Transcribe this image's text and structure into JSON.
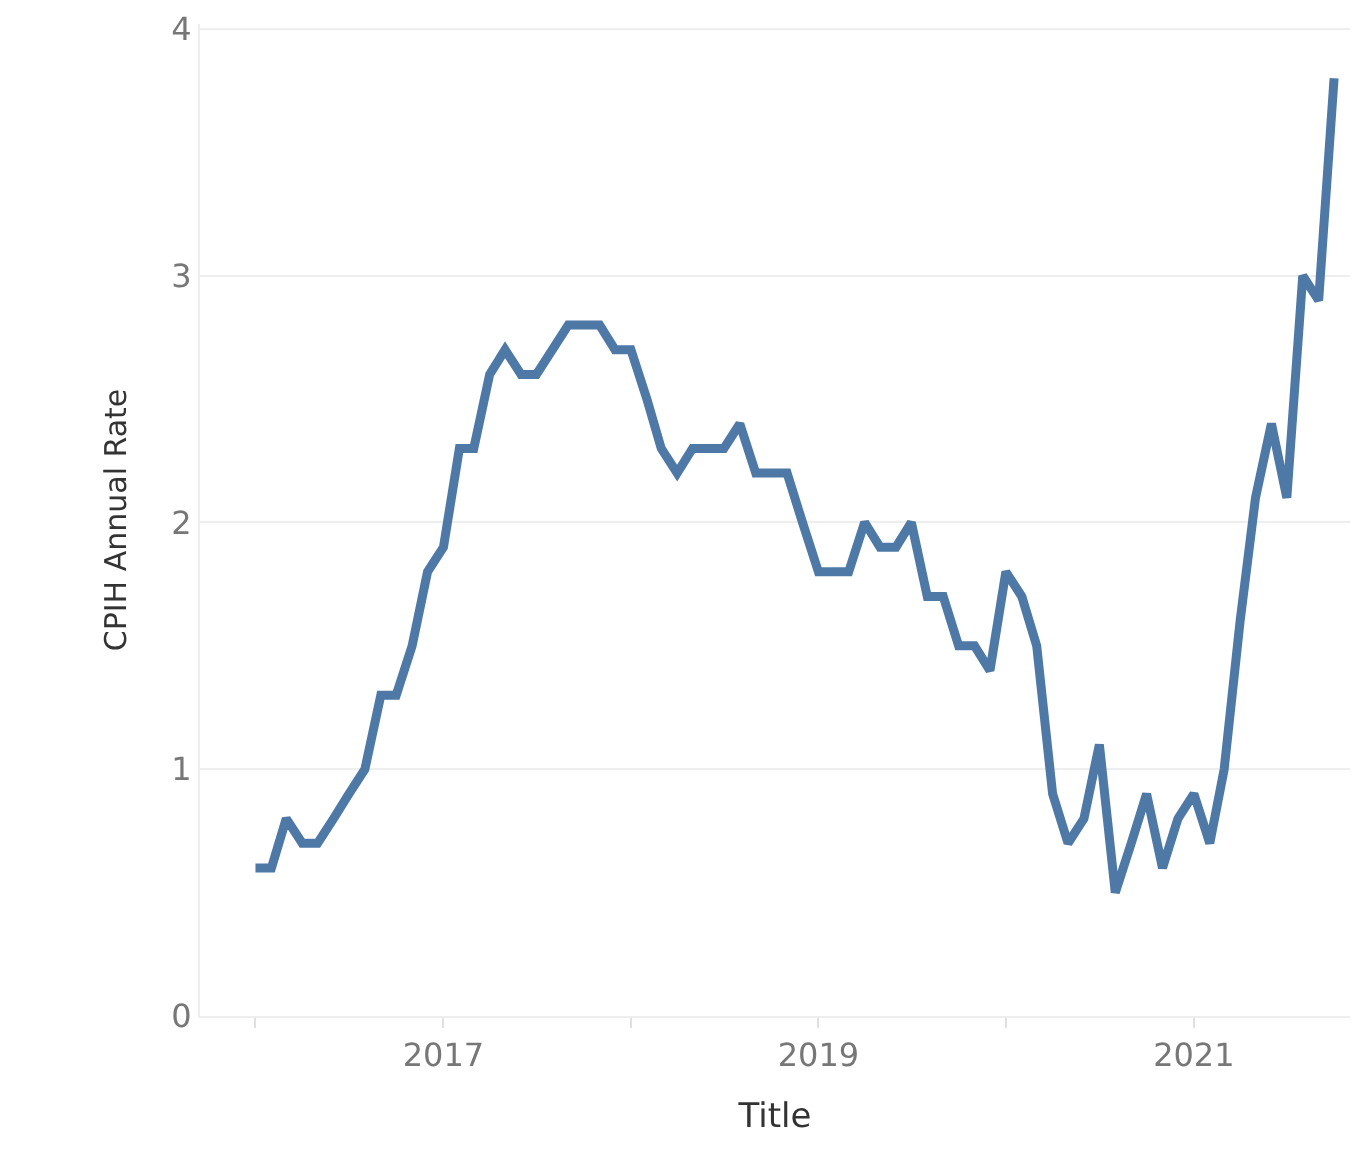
{
  "chart_data": {
    "type": "line",
    "xlabel": "Title",
    "ylabel": "CPIH Annual Rate",
    "x": [
      "2016-01",
      "2016-02",
      "2016-03",
      "2016-04",
      "2016-05",
      "2016-06",
      "2016-07",
      "2016-08",
      "2016-09",
      "2016-10",
      "2016-11",
      "2016-12",
      "2017-01",
      "2017-02",
      "2017-03",
      "2017-04",
      "2017-05",
      "2017-06",
      "2017-07",
      "2017-08",
      "2017-09",
      "2017-10",
      "2017-11",
      "2017-12",
      "2018-01",
      "2018-02",
      "2018-03",
      "2018-04",
      "2018-05",
      "2018-06",
      "2018-07",
      "2018-08",
      "2018-09",
      "2018-10",
      "2018-11",
      "2018-12",
      "2019-01",
      "2019-02",
      "2019-03",
      "2019-04",
      "2019-05",
      "2019-06",
      "2019-07",
      "2019-08",
      "2019-09",
      "2019-10",
      "2019-11",
      "2019-12",
      "2020-01",
      "2020-02",
      "2020-03",
      "2020-04",
      "2020-05",
      "2020-06",
      "2020-07",
      "2020-08",
      "2020-09",
      "2020-10",
      "2020-11",
      "2020-12",
      "2021-01",
      "2021-02",
      "2021-03",
      "2021-04",
      "2021-05",
      "2021-06",
      "2021-07",
      "2021-08",
      "2021-09",
      "2021-10"
    ],
    "series": [
      {
        "color": "#4e79a7",
        "values": [
          0.6,
          0.6,
          0.8,
          0.7,
          0.7,
          0.8,
          0.9,
          1.0,
          1.3,
          1.3,
          1.5,
          1.8,
          1.9,
          2.3,
          2.3,
          2.6,
          2.7,
          2.6,
          2.6,
          2.7,
          2.8,
          2.8,
          2.8,
          2.7,
          2.7,
          2.5,
          2.3,
          2.2,
          2.3,
          2.3,
          2.3,
          2.4,
          2.2,
          2.2,
          2.2,
          2.0,
          1.8,
          1.8,
          1.8,
          2.0,
          1.9,
          1.9,
          2.0,
          1.7,
          1.7,
          1.5,
          1.5,
          1.4,
          1.8,
          1.7,
          1.5,
          0.9,
          0.7,
          0.8,
          1.1,
          0.5,
          0.7,
          0.9,
          0.6,
          0.8,
          0.9,
          0.7,
          1.0,
          1.6,
          2.1,
          2.4,
          2.1,
          3.0,
          2.9,
          3.8
        ]
      }
    ],
    "xlim": [
      "2015-09-15",
      "2021-11-01"
    ],
    "xticks": [
      {
        "value": "2016",
        "label": null
      },
      "2017",
      {
        "value": "2018",
        "label": null
      },
      "2019",
      {
        "value": "2020",
        "label": null
      },
      "2021"
    ],
    "ylim": [
      0,
      4.02
    ],
    "yticks": [
      0,
      1,
      2,
      3,
      4
    ],
    "grid": "y",
    "marker": "none",
    "line_style": "solid"
  }
}
